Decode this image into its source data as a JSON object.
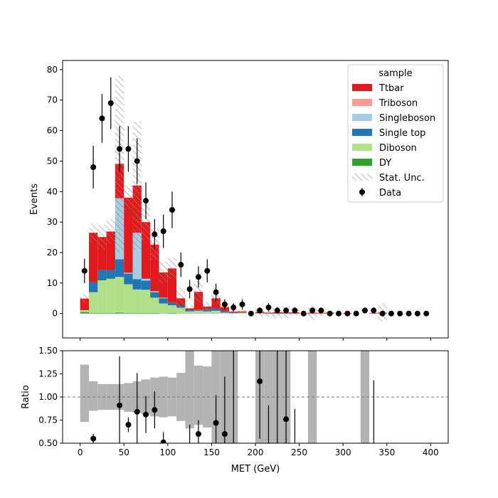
{
  "chart_data": [
    {
      "type": "stacked-bar",
      "panel": "main",
      "xlabel": "",
      "ylabel": "Events",
      "xlim": [
        -20,
        420
      ],
      "ylim": [
        -8,
        83
      ],
      "xticks": [
        0,
        50,
        100,
        150,
        200,
        250,
        300,
        350,
        400
      ],
      "yticks": [
        0,
        10,
        20,
        30,
        40,
        50,
        60,
        70,
        80
      ],
      "bin_width": 10,
      "bin_edges_start": 0,
      "legend": {
        "title": "sample",
        "position": "upper-right",
        "entries": [
          {
            "label": "Ttbar",
            "color": "#e31a1c",
            "kind": "patch"
          },
          {
            "label": "Triboson",
            "color": "#fb9a99",
            "kind": "patch"
          },
          {
            "label": "Singleboson",
            "color": "#a6cee3",
            "kind": "patch"
          },
          {
            "label": "Single top",
            "color": "#1f78b4",
            "kind": "patch"
          },
          {
            "label": "Diboson",
            "color": "#b2df8a",
            "kind": "patch"
          },
          {
            "label": "DY",
            "color": "#33a02c",
            "kind": "patch"
          },
          {
            "label": "Stat. Unc.",
            "color": "#888888",
            "kind": "hatch"
          },
          {
            "label": "Data",
            "color": "#000000",
            "kind": "errorbar"
          }
        ]
      },
      "series": [
        {
          "name": "DY",
          "color": "#33a02c",
          "values": [
            0.5,
            0.2,
            0.2,
            0.2,
            0.3,
            0.2,
            0.2,
            0.2,
            0.2,
            0.1,
            0.2,
            0.1,
            0.1,
            0.1,
            0.1,
            0.1,
            0,
            0,
            0,
            0,
            0,
            0,
            0,
            0,
            0,
            0,
            0,
            0,
            0,
            0,
            0,
            0,
            0,
            0,
            0,
            0,
            0,
            0,
            0,
            0
          ]
        },
        {
          "name": "Diboson",
          "color": "#b2df8a",
          "values": [
            0.6,
            6.8,
            10.7,
            11.2,
            11.7,
            9.4,
            7.7,
            7.6,
            5.0,
            3.2,
            2.5,
            1.8,
            0.6,
            0.8,
            0.6,
            0.8,
            0.3,
            0.1,
            0.3,
            0,
            0.1,
            0,
            0,
            0,
            0,
            0,
            0,
            0,
            0,
            0,
            0,
            0,
            0,
            0,
            0,
            0,
            0,
            0,
            0,
            0
          ]
        },
        {
          "name": "Single top",
          "color": "#1f78b4",
          "values": [
            0,
            3.3,
            3.3,
            3.0,
            5.8,
            3.5,
            3.4,
            3.0,
            1.8,
            1.7,
            1.0,
            0.6,
            0.4,
            0.4,
            0.7,
            0.8,
            0.5,
            0.1,
            0,
            0,
            0,
            0,
            0,
            0,
            0,
            0,
            0,
            0,
            0,
            0,
            0,
            0,
            0,
            0,
            0,
            0,
            0,
            0,
            0,
            0
          ]
        },
        {
          "name": "Singleboson",
          "color": "#a6cee3",
          "values": [
            0,
            0,
            0,
            0,
            20.0,
            0.3,
            15.2,
            0.6,
            0.3,
            0.2,
            0,
            0,
            0,
            0,
            0,
            0,
            0,
            0,
            0,
            0,
            0,
            0,
            0,
            0,
            0,
            0,
            0,
            0,
            0,
            0,
            0,
            0,
            0,
            0,
            0,
            0,
            0,
            0,
            0,
            0
          ]
        },
        {
          "name": "Triboson",
          "color": "#fb9a99",
          "values": [
            0,
            0,
            0,
            0,
            0,
            0,
            0,
            0,
            0,
            0,
            0,
            0,
            0,
            0,
            0,
            0,
            0,
            0,
            0,
            0,
            0,
            0,
            0,
            0,
            0,
            0,
            0,
            0,
            0,
            0,
            0,
            0,
            0,
            0,
            0,
            0,
            0,
            0,
            0,
            0
          ]
        },
        {
          "name": "Ttbar",
          "color": "#e31a1c",
          "values": [
            3.8,
            16.2,
            10.9,
            12.5,
            11.3,
            24.6,
            15.5,
            18.6,
            15.3,
            8.3,
            11.1,
            2.5,
            0.6,
            5.8,
            0.9,
            3.3,
            1.3,
            0.4,
            0.4,
            0,
            0.4,
            0.3,
            0.4,
            0.4,
            0.4,
            0.1,
            0.3,
            0.2,
            0.3,
            0,
            0.2,
            0,
            0,
            0.2,
            0.3,
            0,
            0,
            0,
            0,
            0
          ]
        }
      ],
      "stat_unc": [
        1.5,
        3,
        4,
        4,
        29,
        4,
        21,
        6,
        5,
        3.5,
        3.5,
        3.5,
        1,
        3.5,
        1.5,
        2,
        1.5,
        0.5,
        0.5,
        0,
        1.5,
        1.5,
        2,
        2,
        1,
        0,
        2.5,
        1,
        0,
        0,
        0,
        0,
        0,
        0,
        3,
        0,
        0,
        0,
        0,
        0
      ],
      "data": {
        "name": "Data",
        "x": [
          5,
          15,
          25,
          35,
          45,
          55,
          65,
          75,
          85,
          95,
          105,
          115,
          125,
          135,
          145,
          155,
          165,
          175,
          185,
          195,
          205,
          215,
          225,
          235,
          245,
          255,
          265,
          275,
          285,
          295,
          305,
          315,
          325,
          335,
          345,
          355,
          365,
          375,
          385,
          395
        ],
        "y": [
          14,
          48,
          64,
          69,
          54,
          54,
          50,
          37,
          26,
          27,
          34,
          16,
          8,
          12,
          14,
          7,
          3,
          2,
          3,
          0,
          1,
          2,
          1,
          1,
          1,
          0,
          1,
          1,
          0,
          0,
          0,
          0,
          1,
          1,
          0,
          0,
          0,
          0,
          0,
          0
        ],
        "yerr": [
          4,
          7,
          8,
          8.5,
          7.5,
          7.5,
          7.5,
          6,
          5,
          5.5,
          6,
          4,
          3,
          3.5,
          3.8,
          2.8,
          1.7,
          1.4,
          1.7,
          0,
          1,
          1.4,
          1,
          1,
          1,
          0,
          1,
          1,
          0,
          0,
          0,
          0,
          1,
          1,
          0,
          0,
          0,
          0,
          0,
          0
        ]
      }
    },
    {
      "type": "ratio",
      "panel": "ratio",
      "xlabel": "MET (GeV)",
      "ylabel": "Ratio",
      "xlim": [
        -20,
        420
      ],
      "ylim": [
        0.5,
        1.5
      ],
      "xticks": [
        0,
        50,
        100,
        150,
        200,
        250,
        300,
        350,
        400
      ],
      "yticks": [
        0.5,
        0.75,
        1.0,
        1.25,
        1.5
      ],
      "ytick_labels": [
        "0.50",
        "0.75",
        "1.00",
        "1.25",
        "1.50"
      ],
      "reference_line": 1.0,
      "unc_band": [
        {
          "x0": 0,
          "lo": 0.73,
          "hi": 1.35
        },
        {
          "x0": 10,
          "lo": 0.85,
          "hi": 1.17
        },
        {
          "x0": 20,
          "lo": 0.86,
          "hi": 1.14
        },
        {
          "x0": 30,
          "lo": 0.86,
          "hi": 1.14
        },
        {
          "x0": 40,
          "lo": 0.86,
          "hi": 1.14
        },
        {
          "x0": 50,
          "lo": 0.84,
          "hi": 1.15
        },
        {
          "x0": 60,
          "lo": 0.83,
          "hi": 1.17
        },
        {
          "x0": 70,
          "lo": 0.81,
          "hi": 1.19
        },
        {
          "x0": 80,
          "lo": 0.79,
          "hi": 1.21
        },
        {
          "x0": 90,
          "lo": 0.78,
          "hi": 1.22
        },
        {
          "x0": 100,
          "lo": 0.79,
          "hi": 1.21
        },
        {
          "x0": 110,
          "lo": 0.74,
          "hi": 1.26
        },
        {
          "x0": 120,
          "lo": 0.66,
          "hi": 1.5
        },
        {
          "x0": 130,
          "lo": 0.7,
          "hi": 1.34
        },
        {
          "x0": 140,
          "lo": 0.67,
          "hi": 1.33
        },
        {
          "x0": 150,
          "lo": 0.5,
          "hi": 1.5
        },
        {
          "x0": 160,
          "lo": 0.5,
          "hi": 1.5
        },
        {
          "x0": 170,
          "lo": 0.5,
          "hi": 1.5
        },
        {
          "x0": 200,
          "lo": 0.5,
          "hi": 1.5
        },
        {
          "x0": 210,
          "lo": 0.5,
          "hi": 1.5
        },
        {
          "x0": 220,
          "lo": 0.5,
          "hi": 1.5
        },
        {
          "x0": 230,
          "lo": 0.5,
          "hi": 1.5
        },
        {
          "x0": 260,
          "lo": 0.5,
          "hi": 1.5
        },
        {
          "x0": 320,
          "lo": 0.5,
          "hi": 1.5
        }
      ],
      "points": [
        {
          "x": 15,
          "y": 0.55,
          "err": 0.05
        },
        {
          "x": 45,
          "y": 0.91,
          "err": 0.53
        },
        {
          "x": 55,
          "y": 0.7,
          "err": 0.08
        },
        {
          "x": 65,
          "y": 0.84,
          "err": 0.42
        },
        {
          "x": 75,
          "y": 0.81,
          "err": 0.2
        },
        {
          "x": 85,
          "y": 0.86,
          "err": 0.2
        },
        {
          "x": 95,
          "y": 0.51,
          "err": 0.11
        },
        {
          "x": 125,
          "y": null,
          "err_lo": 0.5,
          "err_hi": 0.7
        },
        {
          "x": 135,
          "y": 0.6,
          "err": 0.15
        },
        {
          "x": 155,
          "y": 0.72,
          "err": 0.3
        },
        {
          "x": 165,
          "y": 0.6,
          "err": 0.62
        },
        {
          "x": 175,
          "y": null,
          "err_lo": 0.5,
          "err_hi": 1.5
        },
        {
          "x": 205,
          "y": 1.17,
          "err": 0.62
        },
        {
          "x": 215,
          "y": null,
          "err_lo": 0.5,
          "err_hi": 0.91
        },
        {
          "x": 225,
          "y": null,
          "err_lo": 0.5,
          "err_hi": 1.5
        },
        {
          "x": 235,
          "y": 0.76,
          "err": 1.0
        },
        {
          "x": 245,
          "y": null,
          "err_lo": 0.5,
          "err_hi": 0.87
        },
        {
          "x": 335,
          "y": null,
          "err_lo": 0.5,
          "err_hi": 1.18
        }
      ]
    }
  ]
}
